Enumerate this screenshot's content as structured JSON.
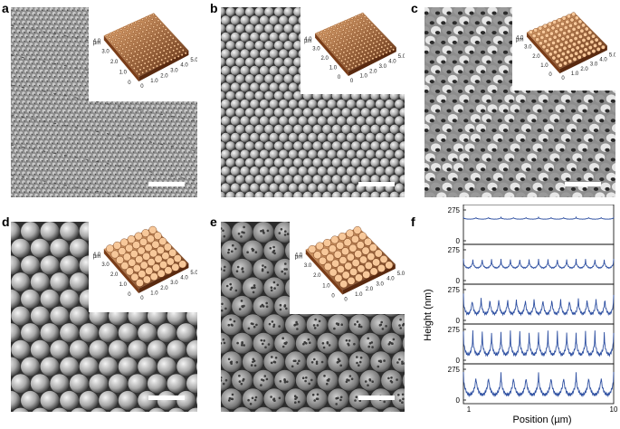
{
  "panels": [
    {
      "label": "a",
      "inset_axis_unit": "µm",
      "inset_ticks": [
        "0",
        "1.0",
        "2.0",
        "3.0",
        "4.0",
        "5.0"
      ],
      "inset_side_ticks": [
        "0",
        "1.0",
        "2.0",
        "3.0",
        "4.0"
      ]
    },
    {
      "label": "b",
      "inset_axis_unit": "µm",
      "inset_ticks": [
        "0",
        "1.0",
        "2.0",
        "3.0",
        "4.0",
        "5.0"
      ],
      "inset_side_ticks": [
        "0",
        "1.0",
        "2.0",
        "3.0",
        "4.0"
      ]
    },
    {
      "label": "c",
      "inset_axis_unit": "µm",
      "inset_ticks": [
        "0",
        "1.0",
        "2.0",
        "3.0",
        "4.0",
        "5.0"
      ],
      "inset_side_ticks": [
        "0",
        "1.0",
        "2.0",
        "3.0",
        "4.0"
      ]
    },
    {
      "label": "d",
      "inset_axis_unit": "µm",
      "inset_ticks": [
        "0",
        "1.0",
        "2.0",
        "3.0",
        "4.0",
        "5.0"
      ],
      "inset_side_ticks": [
        "0",
        "1.0",
        "2.0",
        "3.0",
        "4.0"
      ]
    },
    {
      "label": "e",
      "inset_axis_unit": "µm",
      "inset_ticks": [
        "0",
        "1.0",
        "2.0",
        "3.0",
        "4.0",
        "5.0"
      ],
      "inset_side_ticks": [
        "0",
        "1.0",
        "2.0",
        "3.0",
        "4.0"
      ]
    }
  ],
  "colors": {
    "sem_dark": "#3a3a3a",
    "sem_mid": "#8d8d8d",
    "sem_light": "#d9d9d9",
    "afm_low": "#5a2a10",
    "afm_high": "#f0b37a",
    "profile_line": "#2d4fa1"
  },
  "chart_data": {
    "label": "f",
    "type": "line",
    "xlabel": "Position (µm)",
    "ylabel": "Height (nm)",
    "xlim": [
      1,
      10
    ],
    "x_ticks": [
      "1",
      "10"
    ],
    "ylim": [
      0,
      275
    ],
    "y_ticks": [
      "0",
      "275"
    ],
    "grid": false,
    "series": [
      {
        "panel": "a",
        "amplitude_nm": 20,
        "baseline_nm": 210,
        "periods": 12
      },
      {
        "panel": "b",
        "amplitude_nm": 90,
        "baseline_nm": 190,
        "periods": 16
      },
      {
        "panel": "c",
        "amplitude_nm": 200,
        "baseline_nm": 230,
        "periods": 17
      },
      {
        "panel": "d",
        "amplitude_nm": 240,
        "baseline_nm": 255,
        "periods": 16
      },
      {
        "panel": "e",
        "amplitude_nm": 250,
        "baseline_nm": 260,
        "periods": 12
      }
    ]
  }
}
